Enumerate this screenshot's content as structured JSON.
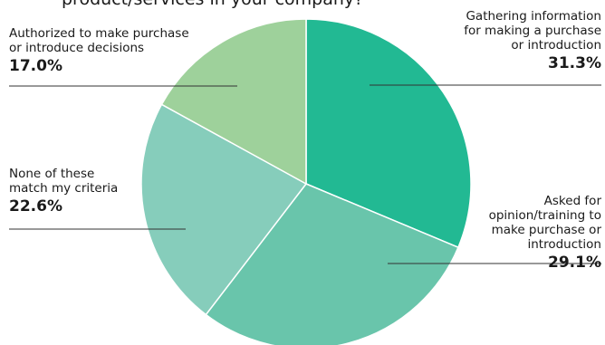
{
  "title": "product/services in your company?",
  "chart_data": {
    "type": "pie",
    "start_angle_deg": 0,
    "direction": "clockwise",
    "slices": [
      {
        "label": "Gathering information\nfor making a purchase\nor introduction",
        "value": 31.3,
        "value_label": "31.3%",
        "color": "#22b993"
      },
      {
        "label": "Asked for\nopinion/training to\nmake purchase or\nintroduction",
        "value": 29.1,
        "value_label": "29.1%",
        "color": "#69c5ab"
      },
      {
        "label": "None of these\nmatch my criteria",
        "value": 22.6,
        "value_label": "22.6%",
        "color": "#86cdbb"
      },
      {
        "label": "Authorized to make purchase\nor introduce decisions",
        "value": 17.0,
        "value_label": "17.0%",
        "color": "#9ed19b"
      }
    ]
  }
}
